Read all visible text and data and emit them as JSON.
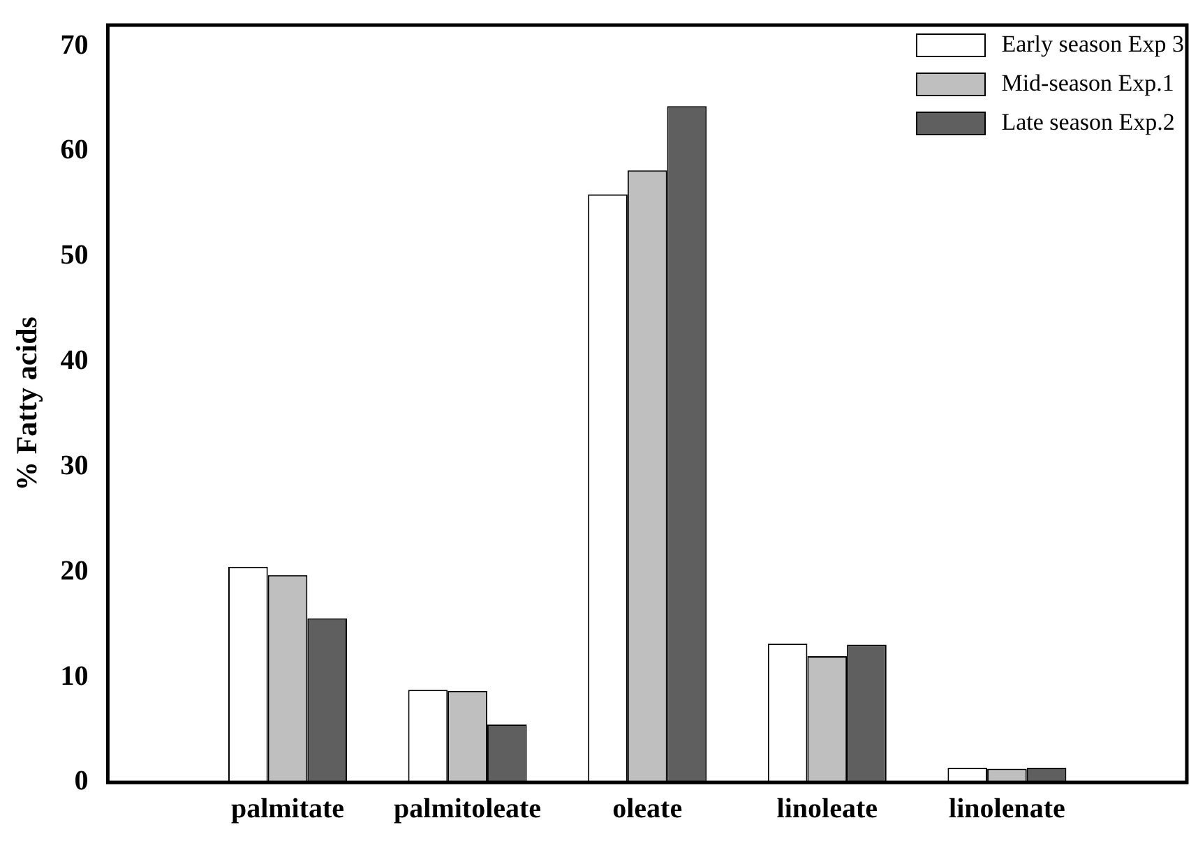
{
  "chart_data": {
    "type": "bar",
    "ylabel": "% Fatty acids",
    "categories": [
      "palmitate",
      "palmitoleate",
      "oleate",
      "linoleate",
      "linolenate"
    ],
    "series": [
      {
        "name": "Early season Exp 3",
        "color": "#ffffff",
        "values": [
          20.5,
          8.8,
          55.9,
          13.2,
          1.4
        ]
      },
      {
        "name": "Mid-season Exp.1",
        "color": "#bfbfbf",
        "values": [
          19.7,
          8.7,
          58.2,
          12.0,
          1.3
        ]
      },
      {
        "name": "Late season Exp.2",
        "color": "#5f5f5f",
        "values": [
          15.6,
          5.5,
          64.3,
          13.1,
          1.4
        ]
      }
    ],
    "ylim": [
      0,
      72
    ],
    "yticks": [
      0,
      10,
      20,
      30,
      40,
      50,
      60,
      70
    ],
    "grid": false,
    "legend": "top right"
  }
}
